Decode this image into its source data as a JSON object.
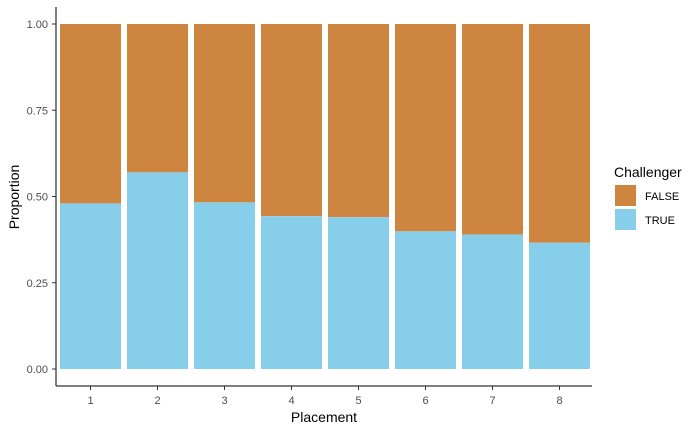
{
  "chart_data": {
    "type": "bar",
    "stacked": true,
    "xlabel": "Placement",
    "ylabel": "Proportion",
    "categories": [
      "1",
      "2",
      "3",
      "4",
      "5",
      "6",
      "7",
      "8"
    ],
    "series": [
      {
        "name": "FALSE",
        "color": "#CD853F",
        "values": [
          0.52,
          0.43,
          0.517,
          0.557,
          0.56,
          0.601,
          0.61,
          0.634
        ]
      },
      {
        "name": "TRUE",
        "color": "#87CEEB",
        "values": [
          0.48,
          0.57,
          0.483,
          0.443,
          0.44,
          0.399,
          0.39,
          0.366
        ]
      }
    ],
    "ylim": [
      0,
      1
    ],
    "yticks": [
      "0.00",
      "0.25",
      "0.50",
      "0.75",
      "1.00"
    ],
    "ytick_values": [
      0,
      0.25,
      0.5,
      0.75,
      1
    ],
    "grid": false,
    "legend": {
      "title": "Challenger",
      "position": "right",
      "entries": [
        "FALSE",
        "TRUE"
      ]
    }
  }
}
